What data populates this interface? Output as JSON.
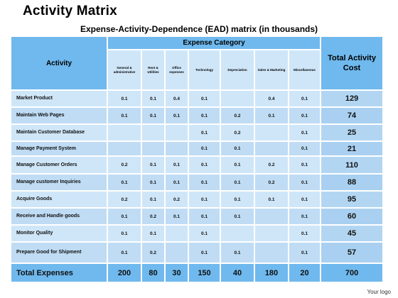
{
  "title": "Activity Matrix",
  "subtitle": "Expense-Activity-Dependence (EAD) matrix (in thousands)",
  "table": {
    "activity_header": "Activity",
    "category_header": "Expense Category",
    "total_header": "Total Activity Cost",
    "columns": [
      "General & administrative",
      "Rent & Utilities",
      "Office expenses",
      "Technology",
      "Depreciation",
      "Sales & Marketing",
      "Miscellaneous"
    ],
    "rows": [
      {
        "activity": "Market Product",
        "values": [
          "0.1",
          "0.1",
          "0.4",
          "0.1",
          "",
          "0.4",
          "0.1"
        ],
        "total": "129"
      },
      {
        "activity": "Maintain Web Pages",
        "values": [
          "0.1",
          "0.1",
          "0.1",
          "0.1",
          "0.2",
          "0.1",
          "0.1"
        ],
        "total": "74"
      },
      {
        "activity": "Maintain Customer Database",
        "values": [
          "",
          "",
          "",
          "0.1",
          "0.2",
          "",
          "0.1"
        ],
        "total": "25"
      },
      {
        "activity": "Manage Payment System",
        "values": [
          "",
          "",
          "",
          "0.1",
          "0.1",
          "",
          "0.1"
        ],
        "total": "21"
      },
      {
        "activity": "Manage Customer Orders",
        "values": [
          "0.2",
          "0.1",
          "0.1",
          "0.1",
          "0.1",
          "0.2",
          "0.1"
        ],
        "total": "110"
      },
      {
        "activity": "Manage customer Inquiries",
        "values": [
          "0.1",
          "0.1",
          "0.1",
          "0.1",
          "0.1",
          "0.2",
          "0.1"
        ],
        "total": "88"
      },
      {
        "activity": "Acquire Goods",
        "values": [
          "0.2",
          "0.1",
          "0.2",
          "0.1",
          "0.1",
          "0.1",
          "0.1"
        ],
        "total": "95"
      },
      {
        "activity": "Receive and Handle goods",
        "values": [
          "0.1",
          "0.2",
          "0.1",
          "0.1",
          "0.1",
          "",
          "0.1"
        ],
        "total": "60"
      },
      {
        "activity": "Monitor Quality",
        "values": [
          "0.1",
          "0.1",
          "",
          "0.1",
          "",
          "",
          "0.1"
        ],
        "total": "45"
      },
      {
        "activity": "Prepare Good for Shipment",
        "values": [
          "0.1",
          "0.2",
          "",
          "0.1",
          "0.1",
          "",
          "0.1"
        ],
        "total": "57"
      }
    ],
    "footer": {
      "label": "Total Expenses",
      "values": [
        "200",
        "80",
        "30",
        "150",
        "40",
        "180",
        "20"
      ],
      "total": "700"
    }
  },
  "logo_text": "Your logo",
  "colors": {
    "header_blue": "#6fb9ee",
    "cell_light": "#cfe6f8",
    "cell_alt": "#bfdcf4"
  }
}
